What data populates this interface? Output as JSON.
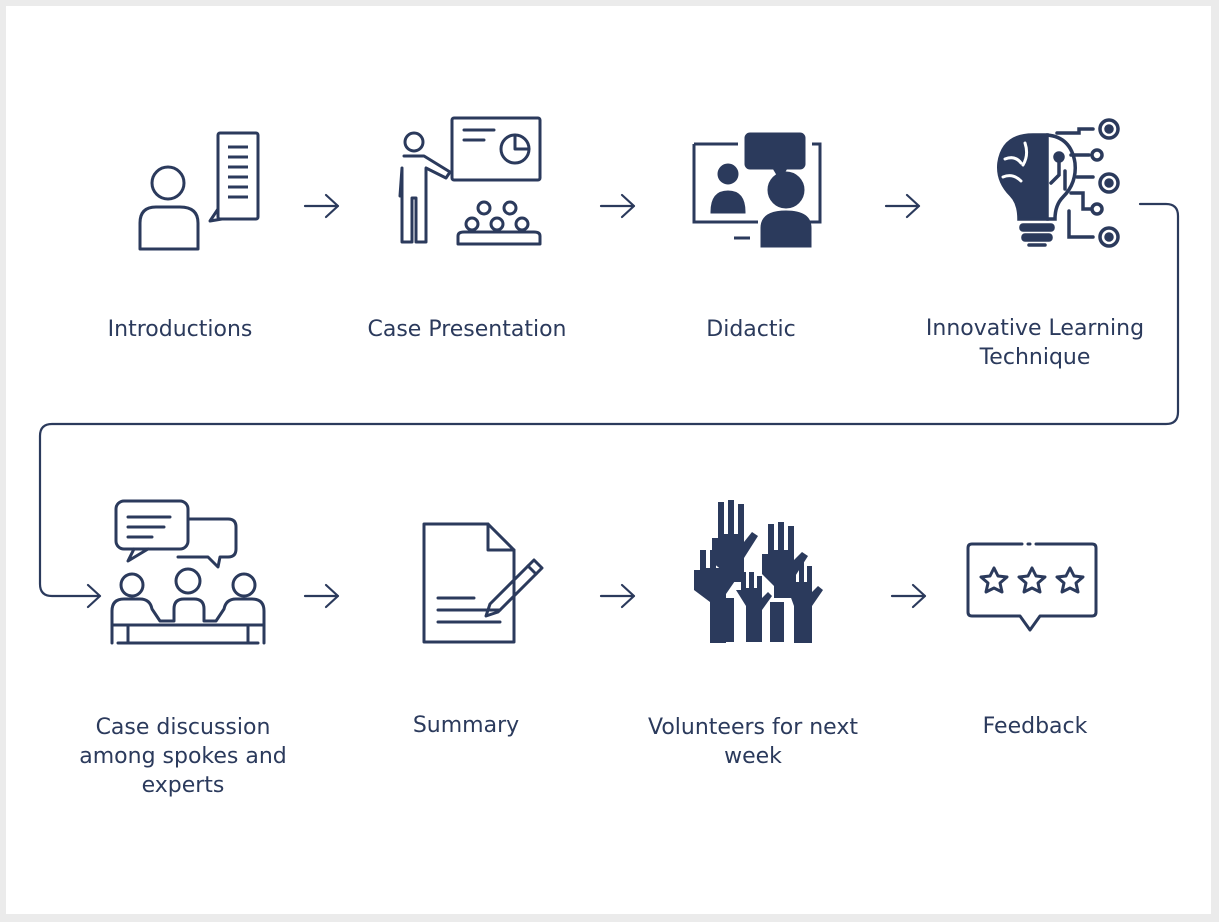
{
  "colors": {
    "ink": "#2b3a5c",
    "background": "#ffffff",
    "outer": "#ebebeb"
  },
  "steps": [
    {
      "label": "Introductions",
      "icon": "person-document-icon"
    },
    {
      "label": "Case Presentation",
      "icon": "presenter-audience-icon"
    },
    {
      "label": "Didactic",
      "icon": "video-conference-icon"
    },
    {
      "label": "Innovative Learning\nTechnique",
      "icon": "brain-lightbulb-circuit-icon"
    },
    {
      "label": "Case discussion\namong spokes and\nexperts",
      "icon": "group-discussion-icon"
    },
    {
      "label": "Summary",
      "icon": "document-pen-icon"
    },
    {
      "label": "Volunteers for next\nweek",
      "icon": "raised-hands-icon"
    },
    {
      "label": "Feedback",
      "icon": "star-rating-icon"
    }
  ],
  "connections": [
    {
      "from": "Introductions",
      "to": "Case Presentation"
    },
    {
      "from": "Case Presentation",
      "to": "Didactic"
    },
    {
      "from": "Didactic",
      "to": "Innovative Learning\nTechnique"
    },
    {
      "from": "Innovative Learning\nTechnique",
      "to": "Case discussion\namong spokes and\nexperts"
    },
    {
      "from": "Case discussion\namong spokes and\nexperts",
      "to": "Summary"
    },
    {
      "from": "Summary",
      "to": "Volunteers for next\nweek"
    },
    {
      "from": "Volunteers for next\nweek",
      "to": "Feedback"
    }
  ]
}
